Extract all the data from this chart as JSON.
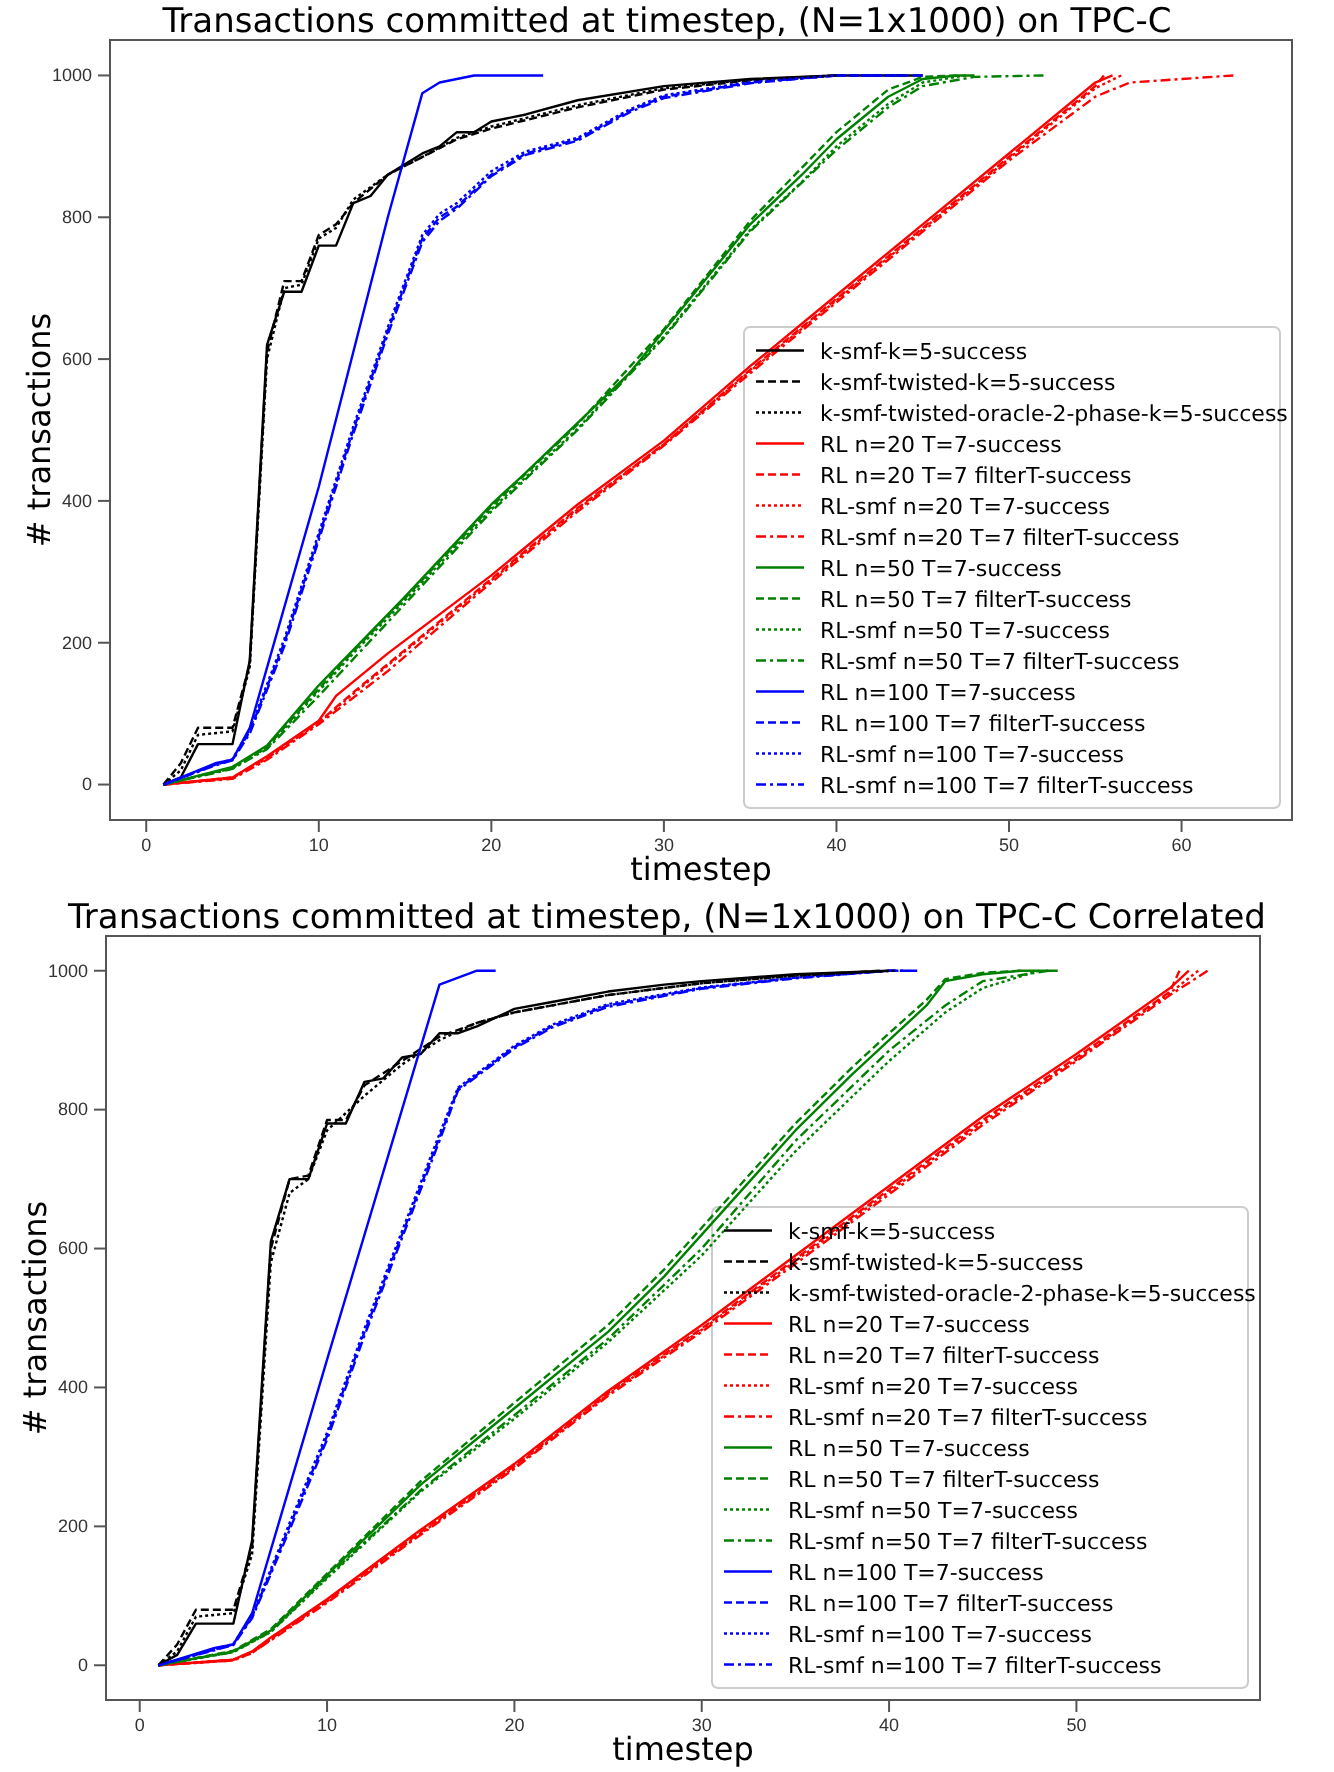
{
  "chart_data": [
    {
      "type": "line",
      "title": "Transactions committed at timestep, (N=1x1000) on TPC-C",
      "xlabel": "timestep",
      "ylabel": "# transactions",
      "xlim": [
        -2.1,
        66.4
      ],
      "xticks": [
        0,
        10,
        20,
        30,
        40,
        50,
        60
      ],
      "ylim": [
        -50,
        1050
      ],
      "yticks": [
        0,
        200,
        400,
        600,
        800,
        1000
      ],
      "legend": "lower right",
      "series": [
        {
          "name": "k-smf-k=5-success",
          "color": "#000000",
          "line_style": "solid",
          "x": [
            1,
            2,
            3,
            5,
            6,
            7,
            8,
            9,
            10,
            11,
            12,
            13,
            14,
            16,
            17,
            18,
            19,
            20,
            22,
            25,
            30,
            35,
            40,
            45
          ],
          "values": [
            0,
            10,
            57,
            57,
            175,
            620,
            695,
            695,
            760,
            760,
            820,
            830,
            860,
            890,
            900,
            920,
            920,
            935,
            945,
            965,
            985,
            995,
            1000,
            1000
          ]
        },
        {
          "name": "k-smf-twisted-k=5-success",
          "color": "#000000",
          "line_style": "dashed",
          "x": [
            1,
            2,
            3,
            5,
            6,
            7,
            8,
            9,
            10,
            11,
            12,
            14,
            16,
            18,
            20,
            25,
            30,
            35,
            40,
            44
          ],
          "values": [
            0,
            30,
            80,
            80,
            170,
            610,
            710,
            710,
            775,
            790,
            820,
            860,
            885,
            910,
            925,
            955,
            980,
            993,
            1000,
            1000
          ]
        },
        {
          "name": "k-smf-twisted-oracle-2-phase-k=5-success",
          "color": "#000000",
          "line_style": "dotted",
          "x": [
            1,
            2,
            3,
            5,
            6,
            7,
            8,
            9,
            10,
            11,
            12,
            14,
            16,
            18,
            20,
            25,
            30,
            35,
            40
          ],
          "values": [
            0,
            20,
            70,
            75,
            165,
            600,
            700,
            705,
            770,
            785,
            825,
            860,
            885,
            912,
            928,
            958,
            982,
            994,
            1000
          ]
        },
        {
          "name": "RL n=20 T=7-success",
          "color": "#ff0000",
          "line_style": "solid",
          "x": [
            1,
            5,
            7,
            10,
            11,
            14,
            17,
            20,
            25,
            30,
            35,
            40,
            45,
            50,
            55,
            56
          ],
          "values": [
            0,
            10,
            40,
            90,
            125,
            185,
            240,
            295,
            395,
            485,
            590,
            690,
            790,
            890,
            990,
            1000
          ]
        },
        {
          "name": "RL n=20 T=7 filterT-success",
          "color": "#ff0000",
          "line_style": "dashed",
          "x": [
            1,
            5,
            7,
            10,
            12,
            15,
            20,
            25,
            30,
            35,
            40,
            45,
            50,
            55,
            55.5
          ],
          "values": [
            0,
            10,
            38,
            88,
            130,
            190,
            290,
            390,
            480,
            585,
            685,
            785,
            885,
            985,
            1000
          ]
        },
        {
          "name": "RL-smf n=20 T=7-success",
          "color": "#ff0000",
          "line_style": "dotted",
          "x": [
            1,
            5,
            7,
            10,
            12,
            15,
            20,
            25,
            30,
            35,
            40,
            45,
            50,
            55,
            56.5
          ],
          "values": [
            0,
            9,
            37,
            87,
            128,
            188,
            288,
            388,
            480,
            583,
            683,
            783,
            883,
            982,
            1000
          ]
        },
        {
          "name": "RL-smf n=20 T=7 filterT-success",
          "color": "#ff0000",
          "line_style": "dashdot",
          "x": [
            1,
            5,
            7,
            10,
            14,
            20,
            25,
            30,
            35,
            40,
            45,
            50,
            55,
            57,
            63
          ],
          "values": [
            0,
            8,
            35,
            85,
            160,
            285,
            385,
            478,
            580,
            680,
            780,
            880,
            970,
            990,
            1000
          ]
        },
        {
          "name": "RL n=50 T=7-success",
          "color": "#008000",
          "line_style": "solid",
          "x": [
            1,
            5,
            7,
            10,
            12,
            15,
            20,
            22,
            25,
            28,
            30,
            33,
            35,
            38,
            40,
            43,
            45,
            47,
            48
          ],
          "values": [
            0,
            25,
            55,
            140,
            190,
            265,
            395,
            440,
            510,
            580,
            640,
            730,
            790,
            860,
            910,
            970,
            995,
            1000,
            1000
          ]
        },
        {
          "name": "RL n=50 T=7 filterT-success",
          "color": "#008000",
          "line_style": "dashed",
          "x": [
            1,
            5,
            7,
            10,
            12,
            15,
            20,
            25,
            30,
            35,
            38,
            40,
            43,
            45,
            47
          ],
          "values": [
            0,
            24,
            53,
            135,
            188,
            263,
            392,
            508,
            642,
            795,
            870,
            920,
            980,
            998,
            1000
          ]
        },
        {
          "name": "RL-smf n=50 T=7-success",
          "color": "#008000",
          "line_style": "dotted",
          "x": [
            1,
            5,
            7,
            10,
            12,
            15,
            20,
            25,
            30,
            35,
            38,
            40,
            43,
            45,
            47.5
          ],
          "values": [
            0,
            23,
            52,
            132,
            185,
            260,
            388,
            502,
            632,
            782,
            850,
            900,
            960,
            990,
            1000
          ]
        },
        {
          "name": "RL-smf n=50 T=7 filterT-success",
          "color": "#008000",
          "line_style": "dashdot",
          "x": [
            1,
            5,
            7,
            10,
            15,
            20,
            25,
            30,
            35,
            40,
            43,
            45,
            48,
            52
          ],
          "values": [
            0,
            22,
            50,
            125,
            255,
            385,
            500,
            630,
            780,
            895,
            955,
            985,
            998,
            1000
          ]
        },
        {
          "name": "RL n=100 T=7-success",
          "color": "#0000ff",
          "line_style": "solid",
          "x": [
            1,
            4,
            5,
            6,
            10,
            14,
            16,
            17,
            19,
            23
          ],
          "values": [
            0,
            30,
            35,
            80,
            420,
            800,
            975,
            990,
            1000,
            1000
          ]
        },
        {
          "name": "RL n=100 T=7 filterT-success",
          "color": "#0000ff",
          "line_style": "dashed",
          "x": [
            1,
            4,
            5,
            6,
            8,
            10,
            12,
            14,
            16,
            17,
            18,
            20,
            22,
            25,
            28,
            30,
            35,
            40,
            44
          ],
          "values": [
            0,
            28,
            35,
            75,
            200,
            350,
            500,
            640,
            770,
            800,
            815,
            860,
            890,
            910,
            950,
            970,
            990,
            1000,
            1000
          ]
        },
        {
          "name": "RL-smf n=100 T=7-success",
          "color": "#0000ff",
          "line_style": "dotted",
          "x": [
            1,
            4,
            5,
            6,
            8,
            10,
            12,
            14,
            16,
            17,
            18,
            20,
            22,
            25,
            28,
            30,
            35,
            40,
            43
          ],
          "values": [
            0,
            28,
            36,
            78,
            205,
            355,
            505,
            645,
            775,
            805,
            820,
            865,
            893,
            912,
            952,
            972,
            991,
            1000,
            1000
          ]
        },
        {
          "name": "RL-smf n=100 T=7 filterT-success",
          "color": "#0000ff",
          "line_style": "dashdot",
          "x": [
            1,
            4,
            5,
            6,
            8,
            10,
            12,
            14,
            16,
            17,
            18,
            20,
            22,
            25,
            28,
            30,
            35,
            40,
            45
          ],
          "values": [
            0,
            27,
            34,
            72,
            195,
            345,
            495,
            635,
            765,
            795,
            812,
            858,
            888,
            908,
            948,
            968,
            989,
            1000,
            1000
          ]
        }
      ]
    },
    {
      "type": "line",
      "title": "Transactions committed at timestep, (N=1x1000) on TPC-C Correlated",
      "xlabel": "timestep",
      "ylabel": "# transactions",
      "xlim": [
        -1.8,
        59.8
      ],
      "xticks": [
        0,
        10,
        20,
        30,
        40,
        50
      ],
      "ylim": [
        -50,
        1050
      ],
      "yticks": [
        0,
        200,
        400,
        600,
        800,
        1000
      ],
      "legend": "lower right",
      "series": [
        {
          "name": "k-smf-k=5-success",
          "color": "#000000",
          "line_style": "solid",
          "x": [
            1,
            2,
            3,
            5,
            6,
            7,
            8,
            9,
            10,
            11,
            12,
            13,
            14,
            15,
            16,
            17,
            18,
            20,
            22,
            25,
            28,
            30,
            35,
            40
          ],
          "values": [
            0,
            15,
            60,
            60,
            180,
            610,
            700,
            700,
            780,
            780,
            840,
            845,
            875,
            880,
            910,
            910,
            920,
            945,
            955,
            970,
            980,
            985,
            995,
            1000
          ]
        },
        {
          "name": "k-smf-twisted-k=5-success",
          "color": "#000000",
          "line_style": "dashed",
          "x": [
            1,
            2,
            3,
            5,
            6,
            7,
            8,
            9,
            10,
            11,
            12,
            14,
            16,
            18,
            20,
            25,
            30,
            35,
            39.5
          ],
          "values": [
            0,
            30,
            80,
            80,
            170,
            600,
            700,
            705,
            785,
            785,
            835,
            870,
            905,
            925,
            940,
            965,
            982,
            993,
            1000
          ]
        },
        {
          "name": "k-smf-twisted-oracle-2-phase-k=5-success",
          "color": "#000000",
          "line_style": "dotted",
          "x": [
            1,
            2,
            3,
            5,
            6,
            7,
            8,
            9,
            10,
            12,
            14,
            16,
            18,
            20,
            25,
            30,
            35,
            40.3
          ],
          "values": [
            0,
            20,
            70,
            75,
            160,
            580,
            680,
            700,
            770,
            820,
            865,
            900,
            925,
            940,
            965,
            982,
            993,
            1000
          ]
        },
        {
          "name": "RL n=20 T=7-success",
          "color": "#ff0000",
          "line_style": "solid",
          "x": [
            1,
            5,
            6,
            7,
            10,
            15,
            20,
            25,
            30,
            35,
            40,
            45,
            50,
            55,
            56
          ],
          "values": [
            0,
            8,
            20,
            40,
            95,
            195,
            290,
            395,
            490,
            590,
            690,
            790,
            880,
            975,
            1000
          ]
        },
        {
          "name": "RL n=20 T=7 filterT-success",
          "color": "#ff0000",
          "line_style": "dashed",
          "x": [
            1,
            5,
            6,
            7,
            10,
            15,
            20,
            25,
            30,
            35,
            40,
            45,
            50,
            55,
            55.5
          ],
          "values": [
            0,
            8,
            19,
            38,
            93,
            192,
            287,
            392,
            485,
            585,
            685,
            785,
            875,
            970,
            1000
          ]
        },
        {
          "name": "RL-smf n=20 T=7-success",
          "color": "#ff0000",
          "line_style": "dotted",
          "x": [
            1,
            5,
            6,
            7,
            10,
            15,
            20,
            25,
            30,
            35,
            40,
            45,
            50,
            55,
            56.5
          ],
          "values": [
            0,
            7,
            18,
            37,
            92,
            190,
            285,
            390,
            483,
            582,
            682,
            782,
            872,
            968,
            1000
          ]
        },
        {
          "name": "RL-smf n=20 T=7 filterT-success",
          "color": "#ff0000",
          "line_style": "dashdot",
          "x": [
            1,
            5,
            6,
            7,
            10,
            15,
            20,
            25,
            30,
            35,
            40,
            45,
            50,
            55,
            57
          ],
          "values": [
            0,
            7,
            18,
            36,
            90,
            188,
            283,
            388,
            480,
            578,
            678,
            778,
            870,
            965,
            1000
          ]
        },
        {
          "name": "RL n=50 T=7-success",
          "color": "#008000",
          "line_style": "solid",
          "x": [
            1,
            5,
            7,
            10,
            15,
            20,
            25,
            28,
            30,
            33,
            35,
            38,
            40,
            42,
            43,
            45,
            47,
            49
          ],
          "values": [
            0,
            20,
            50,
            130,
            260,
            370,
            480,
            560,
            620,
            710,
            770,
            850,
            900,
            950,
            985,
            995,
            1000,
            1000
          ]
        },
        {
          "name": "RL n=50 T=7 filterT-success",
          "color": "#008000",
          "line_style": "dashed",
          "x": [
            1,
            5,
            7,
            10,
            15,
            20,
            25,
            28,
            30,
            33,
            35,
            38,
            40,
            42,
            43,
            45,
            47
          ],
          "values": [
            0,
            21,
            52,
            132,
            265,
            378,
            490,
            570,
            630,
            720,
            780,
            860,
            910,
            958,
            988,
            997,
            1000
          ]
        },
        {
          "name": "RL-smf n=50 T=7-success",
          "color": "#008000",
          "line_style": "dotted",
          "x": [
            1,
            5,
            7,
            10,
            15,
            20,
            25,
            30,
            35,
            40,
            43,
            45,
            48
          ],
          "values": [
            0,
            19,
            48,
            125,
            250,
            355,
            465,
            590,
            740,
            870,
            940,
            975,
            1000
          ]
        },
        {
          "name": "RL-smf n=50 T=7 filterT-success",
          "color": "#008000",
          "line_style": "dashdot",
          "x": [
            1,
            5,
            7,
            10,
            15,
            20,
            25,
            30,
            35,
            40,
            43,
            45,
            48.5
          ],
          "values": [
            0,
            19,
            48,
            127,
            252,
            360,
            470,
            600,
            755,
            885,
            950,
            985,
            1000
          ]
        },
        {
          "name": "RL n=100 T=7-success",
          "color": "#0000ff",
          "line_style": "solid",
          "x": [
            1,
            4,
            5,
            6,
            10,
            14,
            16,
            18,
            19
          ],
          "values": [
            0,
            25,
            30,
            75,
            440,
            800,
            980,
            1000,
            1000
          ]
        },
        {
          "name": "RL n=100 T=7 filterT-success",
          "color": "#0000ff",
          "line_style": "dashed",
          "x": [
            1,
            5,
            6,
            8,
            10,
            12,
            14,
            16,
            17,
            18,
            20,
            22,
            25,
            30,
            35,
            40,
            41
          ],
          "values": [
            0,
            30,
            70,
            200,
            330,
            480,
            620,
            760,
            830,
            850,
            890,
            920,
            950,
            975,
            990,
            1000,
            1000
          ]
        },
        {
          "name": "RL-smf n=100 T=7-success",
          "color": "#0000ff",
          "line_style": "dotted",
          "x": [
            1,
            5,
            6,
            8,
            10,
            12,
            14,
            16,
            17,
            18,
            20,
            22,
            25,
            30,
            35,
            40,
            40.5
          ],
          "values": [
            0,
            31,
            72,
            205,
            335,
            485,
            625,
            765,
            832,
            852,
            892,
            922,
            952,
            976,
            990,
            1000,
            1000
          ]
        },
        {
          "name": "RL-smf n=100 T=7 filterT-success",
          "color": "#0000ff",
          "line_style": "dashdot",
          "x": [
            1,
            5,
            6,
            8,
            10,
            12,
            14,
            16,
            17,
            18,
            20,
            22,
            25,
            30,
            35,
            40,
            41.5
          ],
          "values": [
            0,
            29,
            68,
            195,
            325,
            475,
            615,
            755,
            828,
            848,
            888,
            918,
            948,
            974,
            989,
            1000,
            1000
          ]
        }
      ]
    }
  ]
}
